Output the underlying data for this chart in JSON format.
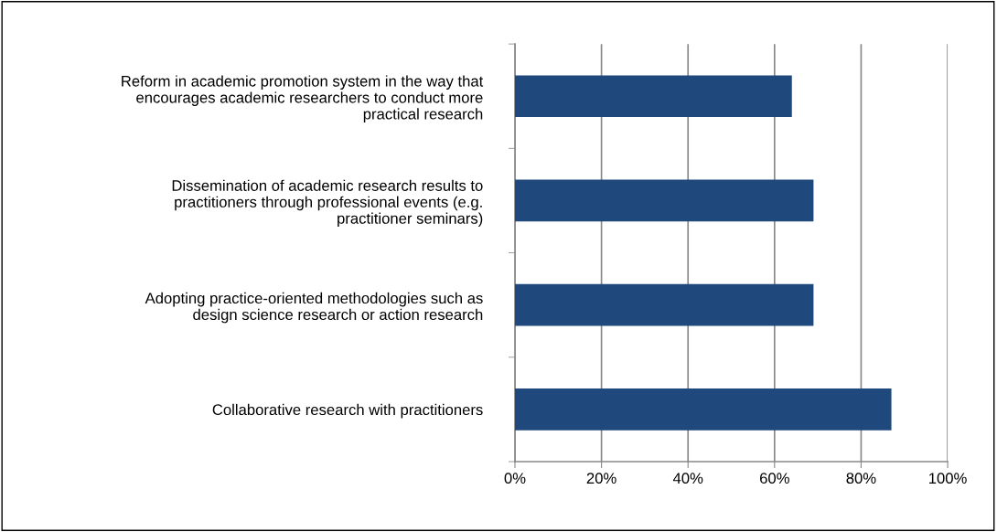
{
  "chart_data": {
    "type": "bar",
    "orientation": "horizontal",
    "categories": [
      "Reform in academic promotion system in the way that\nencourages academic researchers to conduct more\npractical research",
      "Dissemination of academic research results to\npractitioners through professional events (e.g.\npractitioner seminars)",
      "Adopting practice-oriented methodologies such as\ndesign science research or action research",
      "Collaborative research with practitioners"
    ],
    "values": [
      64,
      69,
      69,
      87
    ],
    "color": "#1f497d",
    "xlim": [
      0,
      100
    ],
    "xticks": [
      {
        "value": 0,
        "label": "0%"
      },
      {
        "value": 20,
        "label": "20%"
      },
      {
        "value": 40,
        "label": "40%"
      },
      {
        "value": 60,
        "label": "60%"
      },
      {
        "value": 80,
        "label": "80%"
      },
      {
        "value": 100,
        "label": "100%"
      }
    ],
    "grid": "x",
    "legend": false
  }
}
